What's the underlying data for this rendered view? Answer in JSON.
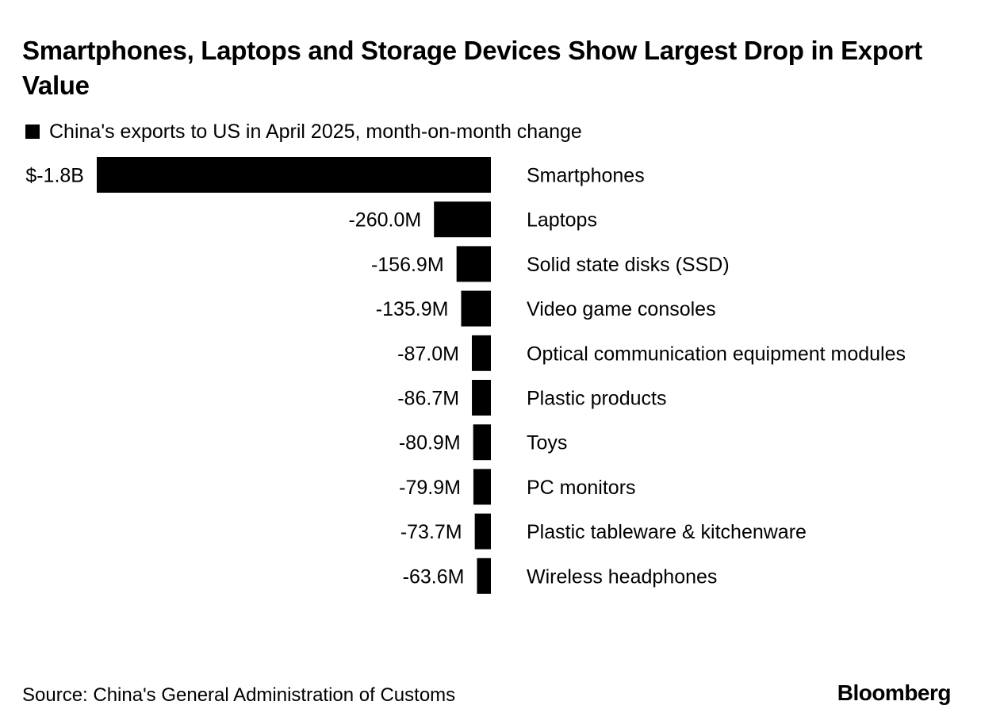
{
  "header": {
    "title": "Smartphones, Laptops and Storage Devices Show Largest Drop in Export Value",
    "legend_label": "China's exports to US in April 2025, month-on-month change"
  },
  "footer": {
    "source": "Source: China's General Administration of Customs",
    "brand": "Bloomberg"
  },
  "chart_data": {
    "type": "bar",
    "orientation": "horizontal",
    "title": "Smartphones, Laptops and Storage Devices Show Largest Drop in Export Value",
    "subtitle": "China's exports to US in April 2025, month-on-month change",
    "unit": "USD millions",
    "bar_color": "#000000",
    "categories": [
      "Smartphones",
      "Laptops",
      "Solid state disks (SSD)",
      "Video game consoles",
      "Optical communication equipment modules",
      "Plastic products",
      "Toys",
      "PC monitors",
      "Plastic tableware & kitchenware",
      "Wireless headphones"
    ],
    "values": [
      -1800,
      -260.0,
      -156.9,
      -135.9,
      -87.0,
      -86.7,
      -80.9,
      -79.9,
      -73.7,
      -63.6
    ],
    "value_labels": [
      "$-1.8B",
      "-260.0M",
      "-156.9M",
      "-135.9M",
      "-87.0M",
      "-86.7M",
      "-80.9M",
      "-79.9M",
      "-73.7M",
      "-63.6M"
    ],
    "legend": [
      "China's exports to US in April 2025, month-on-month change"
    ],
    "legend_position": "top-left",
    "grid": false,
    "xlim": [
      -1800,
      0
    ]
  }
}
